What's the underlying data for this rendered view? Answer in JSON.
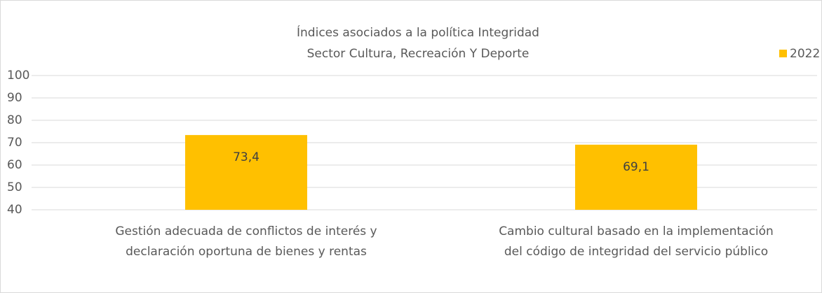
{
  "chart_data": {
    "type": "bar",
    "title": "Índices asociados a la política Integridad",
    "subtitle": "Sector Cultura, Recreación Y Deporte",
    "categories": [
      [
        "Gestión adecuada de conflictos de interés y",
        "declaración oportuna de bienes y rentas"
      ],
      [
        "Cambio cultural basado en la implementación",
        "del código de integridad del servicio público"
      ]
    ],
    "series": [
      {
        "name": "2022",
        "color": "#ffc000",
        "values": [
          73.4,
          69.1
        ],
        "value_labels": [
          "73,4",
          "69,1"
        ]
      }
    ],
    "ylim": [
      40,
      100
    ],
    "yticks": [
      40,
      50,
      60,
      70,
      80,
      90,
      100
    ],
    "grid": true,
    "legend": "top-right"
  }
}
